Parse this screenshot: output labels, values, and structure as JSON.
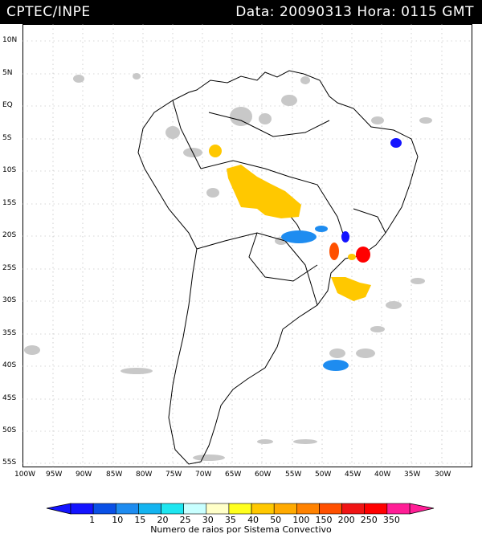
{
  "header": {
    "title": "CPTEC/INPE",
    "info": "Data: 20090313 Hora: 0115 GMT"
  },
  "map": {
    "lat_labels": [
      "10N",
      "5N",
      "EQ",
      "5S",
      "10S",
      "15S",
      "20S",
      "25S",
      "30S",
      "35S",
      "40S",
      "45S",
      "50S",
      "55S"
    ],
    "lon_labels": [
      "100W",
      "95W",
      "90W",
      "85W",
      "80W",
      "75W",
      "70W",
      "65W",
      "60W",
      "55W",
      "50W",
      "45W",
      "40W",
      "35W",
      "30W"
    ]
  },
  "legend": {
    "title": "Numero de raios por Sistema Convectivo",
    "values": [
      "1",
      "10",
      "15",
      "20",
      "25",
      "30",
      "35",
      "40",
      "50",
      "100",
      "150",
      "200",
      "250",
      "350"
    ],
    "colors": [
      "#1414ff",
      "#0a50e6",
      "#1e8cf0",
      "#14b4f0",
      "#1ee6f0",
      "#c8ffff",
      "#ffffc8",
      "#ffff1e",
      "#ffc800",
      "#ffaa00",
      "#ff8200",
      "#ff5000",
      "#f01414",
      "#ff0000",
      "#ff1e96"
    ]
  }
}
